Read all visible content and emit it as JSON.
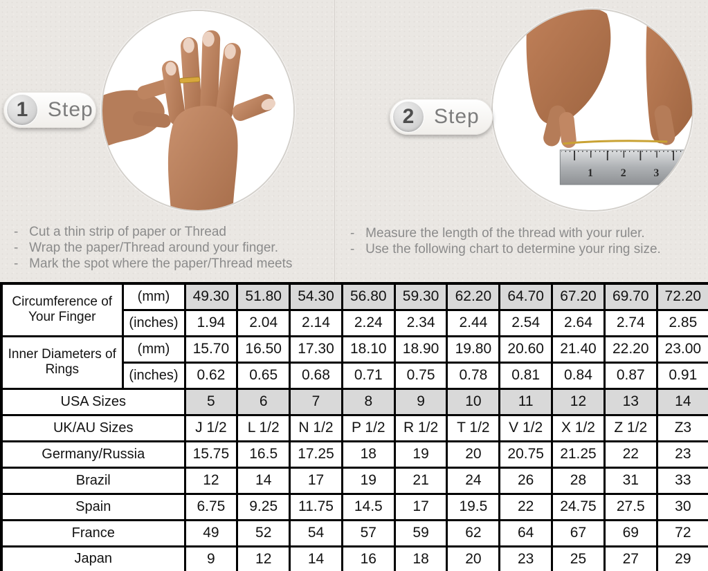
{
  "colors": {
    "top_background": "#eae7e3",
    "divider": "#d6d2ce",
    "badge_number": "#4e4e4e",
    "badge_label": "#7c7c7c",
    "instruction_text": "#8b8b8b",
    "table_border": "#000000",
    "highlight_cell": "#d9d9d9",
    "skin_tone": "#c18262",
    "gold_thread": "#c9a233",
    "ruler_metal": "#aeb1b4"
  },
  "steps": [
    {
      "number": "1",
      "label": "Step",
      "instructions": [
        "Cut a thin strip of paper or Thread",
        "Wrap the paper/Thread around your finger.",
        "Mark the spot where the paper/Thread meets"
      ]
    },
    {
      "number": "2",
      "label": "Step",
      "instructions": [
        "Measure the length of the thread with your ruler.",
        "Use the following chart to determine your ring size."
      ],
      "ruler_numbers": [
        "1",
        "2",
        "3"
      ]
    }
  ],
  "table": {
    "groups": [
      {
        "label": "Circumference of Your Finger",
        "rows": [
          {
            "unit": "(mm)",
            "values": [
              "49.30",
              "51.80",
              "54.30",
              "56.80",
              "59.30",
              "62.20",
              "64.70",
              "67.20",
              "69.70",
              "72.20"
            ]
          },
          {
            "unit": "(inches)",
            "values": [
              "1.94",
              "2.04",
              "2.14",
              "2.24",
              "2.34",
              "2.44",
              "2.54",
              "2.64",
              "2.74",
              "2.85"
            ]
          }
        ]
      },
      {
        "label": "Inner Diameters of Rings",
        "rows": [
          {
            "unit": "(mm)",
            "values": [
              "15.70",
              "16.50",
              "17.30",
              "18.10",
              "18.90",
              "19.80",
              "20.60",
              "21.40",
              "22.20",
              "23.00"
            ]
          },
          {
            "unit": "(inches)",
            "values": [
              "0.62",
              "0.65",
              "0.68",
              "0.71",
              "0.75",
              "0.78",
              "0.81",
              "0.84",
              "0.87",
              "0.91"
            ]
          }
        ]
      }
    ],
    "size_rows": [
      {
        "label": "USA Sizes",
        "values": [
          "5",
          "6",
          "7",
          "8",
          "9",
          "10",
          "11",
          "12",
          "13",
          "14"
        ]
      },
      {
        "label": "UK/AU Sizes",
        "values": [
          "J 1/2",
          "L 1/2",
          "N 1/2",
          "P 1/2",
          "R 1/2",
          "T 1/2",
          "V 1/2",
          "X 1/2",
          "Z 1/2",
          "Z3"
        ]
      },
      {
        "label": "Germany/Russia",
        "values": [
          "15.75",
          "16.5",
          "17.25",
          "18",
          "19",
          "20",
          "20.75",
          "21.25",
          "22",
          "23"
        ]
      },
      {
        "label": "Brazil",
        "values": [
          "12",
          "14",
          "17",
          "19",
          "21",
          "24",
          "26",
          "28",
          "31",
          "33"
        ]
      },
      {
        "label": "Spain",
        "values": [
          "6.75",
          "9.25",
          "11.75",
          "14.5",
          "17",
          "19.5",
          "22",
          "24.75",
          "27.5",
          "30"
        ]
      },
      {
        "label": "France",
        "values": [
          "49",
          "52",
          "54",
          "57",
          "59",
          "62",
          "64",
          "67",
          "69",
          "72"
        ]
      },
      {
        "label": "Japan",
        "values": [
          "9",
          "12",
          "14",
          "16",
          "18",
          "20",
          "23",
          "25",
          "27",
          "29"
        ]
      }
    ]
  }
}
